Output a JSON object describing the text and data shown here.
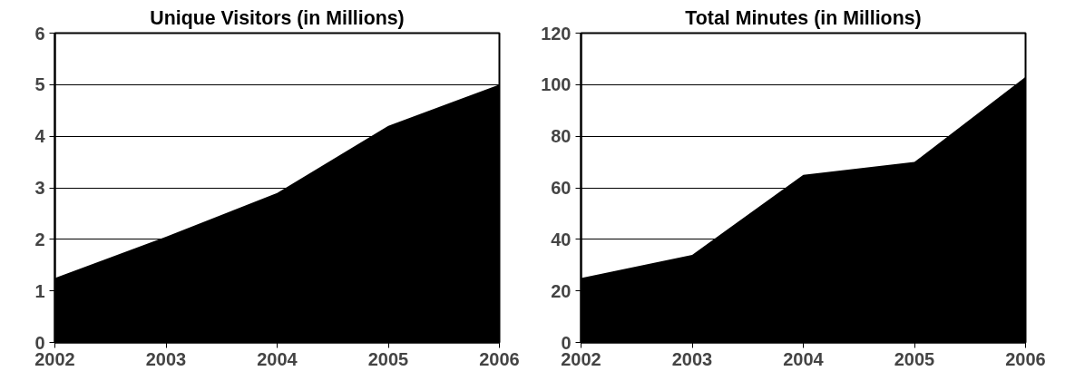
{
  "chart_data": [
    {
      "type": "area",
      "title": "Unique Visitors (in Millions)",
      "x": [
        2002,
        2003,
        2004,
        2005,
        2006
      ],
      "values": [
        1.25,
        2.05,
        2.9,
        4.2,
        5.0
      ],
      "color": "#000000",
      "xlim": [
        2002,
        2006
      ],
      "xticks": [
        2002,
        2003,
        2004,
        2005,
        2006
      ],
      "ylim": [
        0,
        6
      ],
      "yticks": [
        0,
        1,
        2,
        3,
        4,
        5,
        6
      ],
      "grid": "y"
    },
    {
      "type": "area",
      "title": "Total Minutes (in Millions)",
      "x": [
        2002,
        2003,
        2004,
        2005,
        2006
      ],
      "values": [
        25,
        34,
        65,
        70,
        103
      ],
      "color": "#000000",
      "xlim": [
        2002,
        2006
      ],
      "xticks": [
        2002,
        2003,
        2004,
        2005,
        2006
      ],
      "ylim": [
        0,
        120
      ],
      "yticks": [
        0,
        20,
        40,
        60,
        80,
        100,
        120
      ],
      "grid": "y"
    }
  ]
}
